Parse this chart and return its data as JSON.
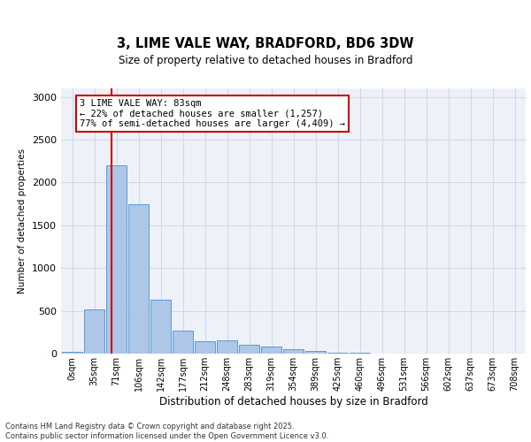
{
  "title1": "3, LIME VALE WAY, BRADFORD, BD6 3DW",
  "title2": "Size of property relative to detached houses in Bradford",
  "xlabel": "Distribution of detached houses by size in Bradford",
  "ylabel": "Number of detached properties",
  "bar_color": "#aec6e8",
  "bar_edge_color": "#5b9bd5",
  "categories": [
    "0sqm",
    "35sqm",
    "71sqm",
    "106sqm",
    "142sqm",
    "177sqm",
    "212sqm",
    "248sqm",
    "283sqm",
    "319sqm",
    "354sqm",
    "389sqm",
    "425sqm",
    "460sqm",
    "496sqm",
    "531sqm",
    "566sqm",
    "602sqm",
    "637sqm",
    "673sqm",
    "708sqm"
  ],
  "values": [
    20,
    520,
    2200,
    1750,
    630,
    270,
    140,
    150,
    100,
    80,
    55,
    30,
    15,
    10,
    5,
    3,
    2,
    1,
    1,
    1,
    0
  ],
  "ylim": [
    0,
    3100
  ],
  "yticks": [
    0,
    500,
    1000,
    1500,
    2000,
    2500,
    3000
  ],
  "vline_pos": 1.78,
  "annotation_text": "3 LIME VALE WAY: 83sqm\n← 22% of detached houses are smaller (1,257)\n77% of semi-detached houses are larger (4,409) →",
  "annotation_box_color": "#ffffff",
  "annotation_box_edge": "#cc0000",
  "vline_color": "#cc0000",
  "grid_color": "#d0d8e8",
  "bg_color": "#eef2f8",
  "footer1": "Contains HM Land Registry data © Crown copyright and database right 2025.",
  "footer2": "Contains public sector information licensed under the Open Government Licence v3.0."
}
